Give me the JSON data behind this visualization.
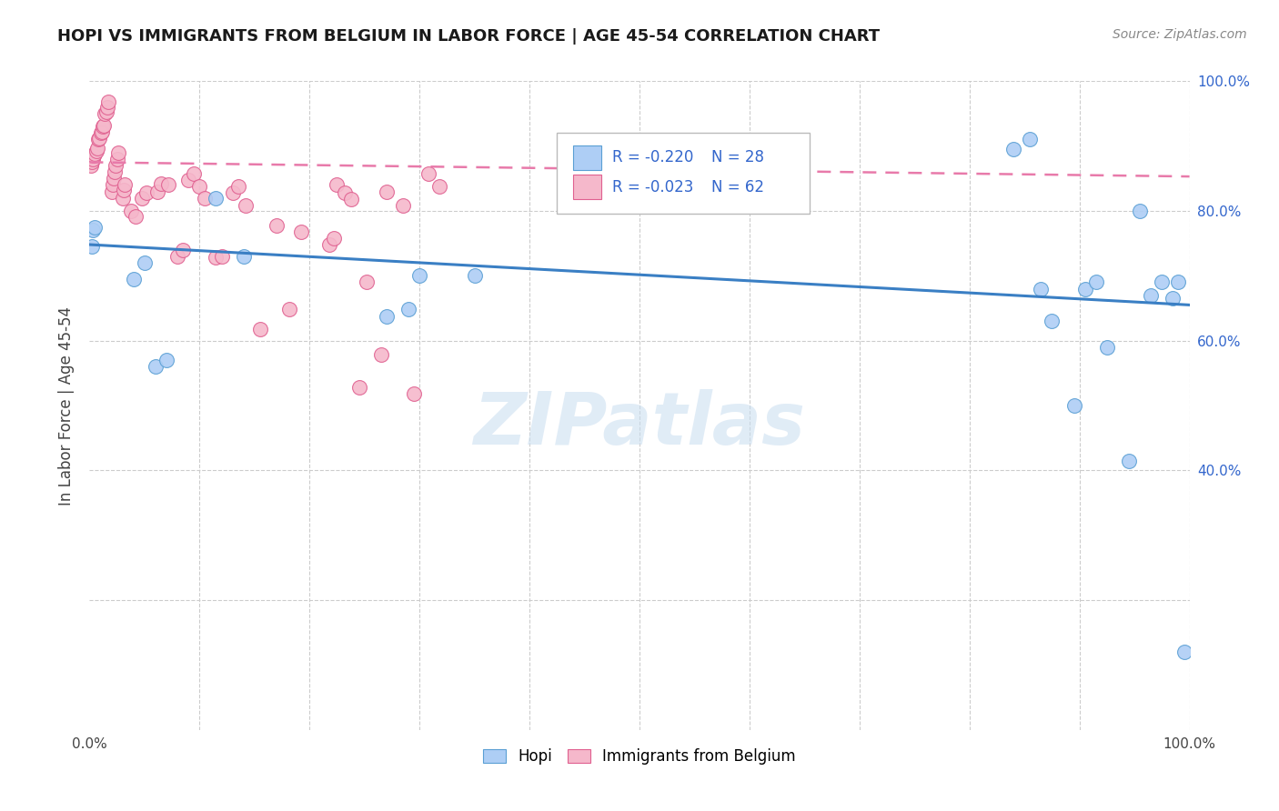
{
  "title": "HOPI VS IMMIGRANTS FROM BELGIUM IN LABOR FORCE | AGE 45-54 CORRELATION CHART",
  "source": "Source: ZipAtlas.com",
  "ylabel": "In Labor Force | Age 45-54",
  "xlim": [
    0.0,
    1.0
  ],
  "ylim": [
    0.0,
    1.0
  ],
  "background_color": "#ffffff",
  "watermark_text": "ZIPatlas",
  "legend_r1": "R = -0.220",
  "legend_n1": "N = 28",
  "legend_r2": "R = -0.023",
  "legend_n2": "N = 62",
  "hopi_color": "#aecef5",
  "belgium_color": "#f5b8cb",
  "hopi_edge_color": "#5a9fd4",
  "belgium_edge_color": "#e06090",
  "hopi_line_color": "#3a7fc4",
  "belgium_line_color": "#e87aaa",
  "legend_r_color": "#3366cc",
  "hopi_points_x": [
    0.002,
    0.003,
    0.005,
    0.04,
    0.05,
    0.06,
    0.07,
    0.14,
    0.27,
    0.29,
    0.3,
    0.35,
    0.84,
    0.855,
    0.865,
    0.875,
    0.895,
    0.905,
    0.915,
    0.925,
    0.945,
    0.955,
    0.965,
    0.975,
    0.985,
    0.99,
    0.995,
    0.115
  ],
  "hopi_points_y": [
    0.745,
    0.77,
    0.775,
    0.695,
    0.72,
    0.56,
    0.57,
    0.73,
    0.638,
    0.648,
    0.7,
    0.7,
    0.895,
    0.91,
    0.68,
    0.63,
    0.5,
    0.68,
    0.69,
    0.59,
    0.415,
    0.8,
    0.67,
    0.69,
    0.665,
    0.69,
    0.12,
    0.82
  ],
  "belgium_points_x": [
    0.001,
    0.002,
    0.003,
    0.004,
    0.005,
    0.006,
    0.007,
    0.008,
    0.009,
    0.01,
    0.011,
    0.012,
    0.013,
    0.014,
    0.015,
    0.016,
    0.017,
    0.02,
    0.021,
    0.022,
    0.023,
    0.024,
    0.025,
    0.026,
    0.03,
    0.031,
    0.032,
    0.038,
    0.042,
    0.048,
    0.052,
    0.062,
    0.065,
    0.072,
    0.08,
    0.085,
    0.09,
    0.095,
    0.1,
    0.105,
    0.115,
    0.12,
    0.13,
    0.135,
    0.142,
    0.155,
    0.17,
    0.182,
    0.192,
    0.218,
    0.222,
    0.225,
    0.232,
    0.238,
    0.245,
    0.252,
    0.265,
    0.27,
    0.285,
    0.295,
    0.308,
    0.318
  ],
  "belgium_points_y": [
    0.87,
    0.875,
    0.88,
    0.885,
    0.888,
    0.892,
    0.896,
    0.91,
    0.912,
    0.92,
    0.922,
    0.93,
    0.932,
    0.95,
    0.952,
    0.96,
    0.968,
    0.83,
    0.84,
    0.85,
    0.86,
    0.87,
    0.88,
    0.89,
    0.82,
    0.832,
    0.84,
    0.8,
    0.792,
    0.82,
    0.828,
    0.83,
    0.842,
    0.84,
    0.73,
    0.74,
    0.848,
    0.858,
    0.838,
    0.82,
    0.728,
    0.73,
    0.828,
    0.838,
    0.808,
    0.618,
    0.778,
    0.648,
    0.768,
    0.748,
    0.758,
    0.84,
    0.828,
    0.818,
    0.528,
    0.69,
    0.578,
    0.83,
    0.808,
    0.518,
    0.858,
    0.838
  ],
  "hopi_trendline_x": [
    0.0,
    1.0
  ],
  "hopi_trendline_y": [
    0.748,
    0.655
  ],
  "belgium_trendline_x": [
    0.0,
    1.0
  ],
  "belgium_trendline_y": [
    0.875,
    0.853
  ]
}
